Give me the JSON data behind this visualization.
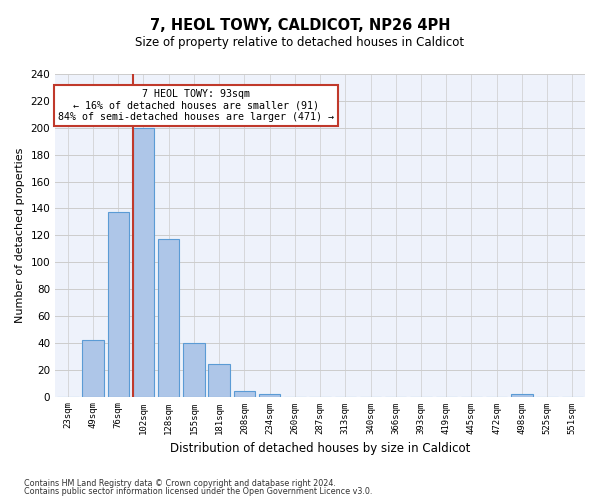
{
  "title_line1": "7, HEOL TOWY, CALDICOT, NP26 4PH",
  "title_line2": "Size of property relative to detached houses in Caldicot",
  "xlabel": "Distribution of detached houses by size in Caldicot",
  "ylabel": "Number of detached properties",
  "categories": [
    "23sqm",
    "49sqm",
    "76sqm",
    "102sqm",
    "128sqm",
    "155sqm",
    "181sqm",
    "208sqm",
    "234sqm",
    "260sqm",
    "287sqm",
    "313sqm",
    "340sqm",
    "366sqm",
    "393sqm",
    "419sqm",
    "445sqm",
    "472sqm",
    "498sqm",
    "525sqm",
    "551sqm"
  ],
  "values": [
    0,
    42,
    137,
    200,
    117,
    40,
    24,
    4,
    2,
    0,
    0,
    0,
    0,
    0,
    0,
    0,
    0,
    0,
    2,
    0,
    0
  ],
  "bar_color": "#aec6e8",
  "bar_edge_color": "#5b9bd5",
  "highlight_color": "#c0392b",
  "annotation_line1": "7 HEOL TOWY: 93sqm",
  "annotation_line2": "← 16% of detached houses are smaller (91)",
  "annotation_line3": "84% of semi-detached houses are larger (471) →",
  "annotation_box_color": "#c0392b",
  "ylim": [
    0,
    240
  ],
  "yticks": [
    0,
    20,
    40,
    60,
    80,
    100,
    120,
    140,
    160,
    180,
    200,
    220,
    240
  ],
  "grid_color": "#cccccc",
  "bg_color": "#eef2fb",
  "footer_line1": "Contains HM Land Registry data © Crown copyright and database right 2024.",
  "footer_line2": "Contains public sector information licensed under the Open Government Licence v3.0."
}
